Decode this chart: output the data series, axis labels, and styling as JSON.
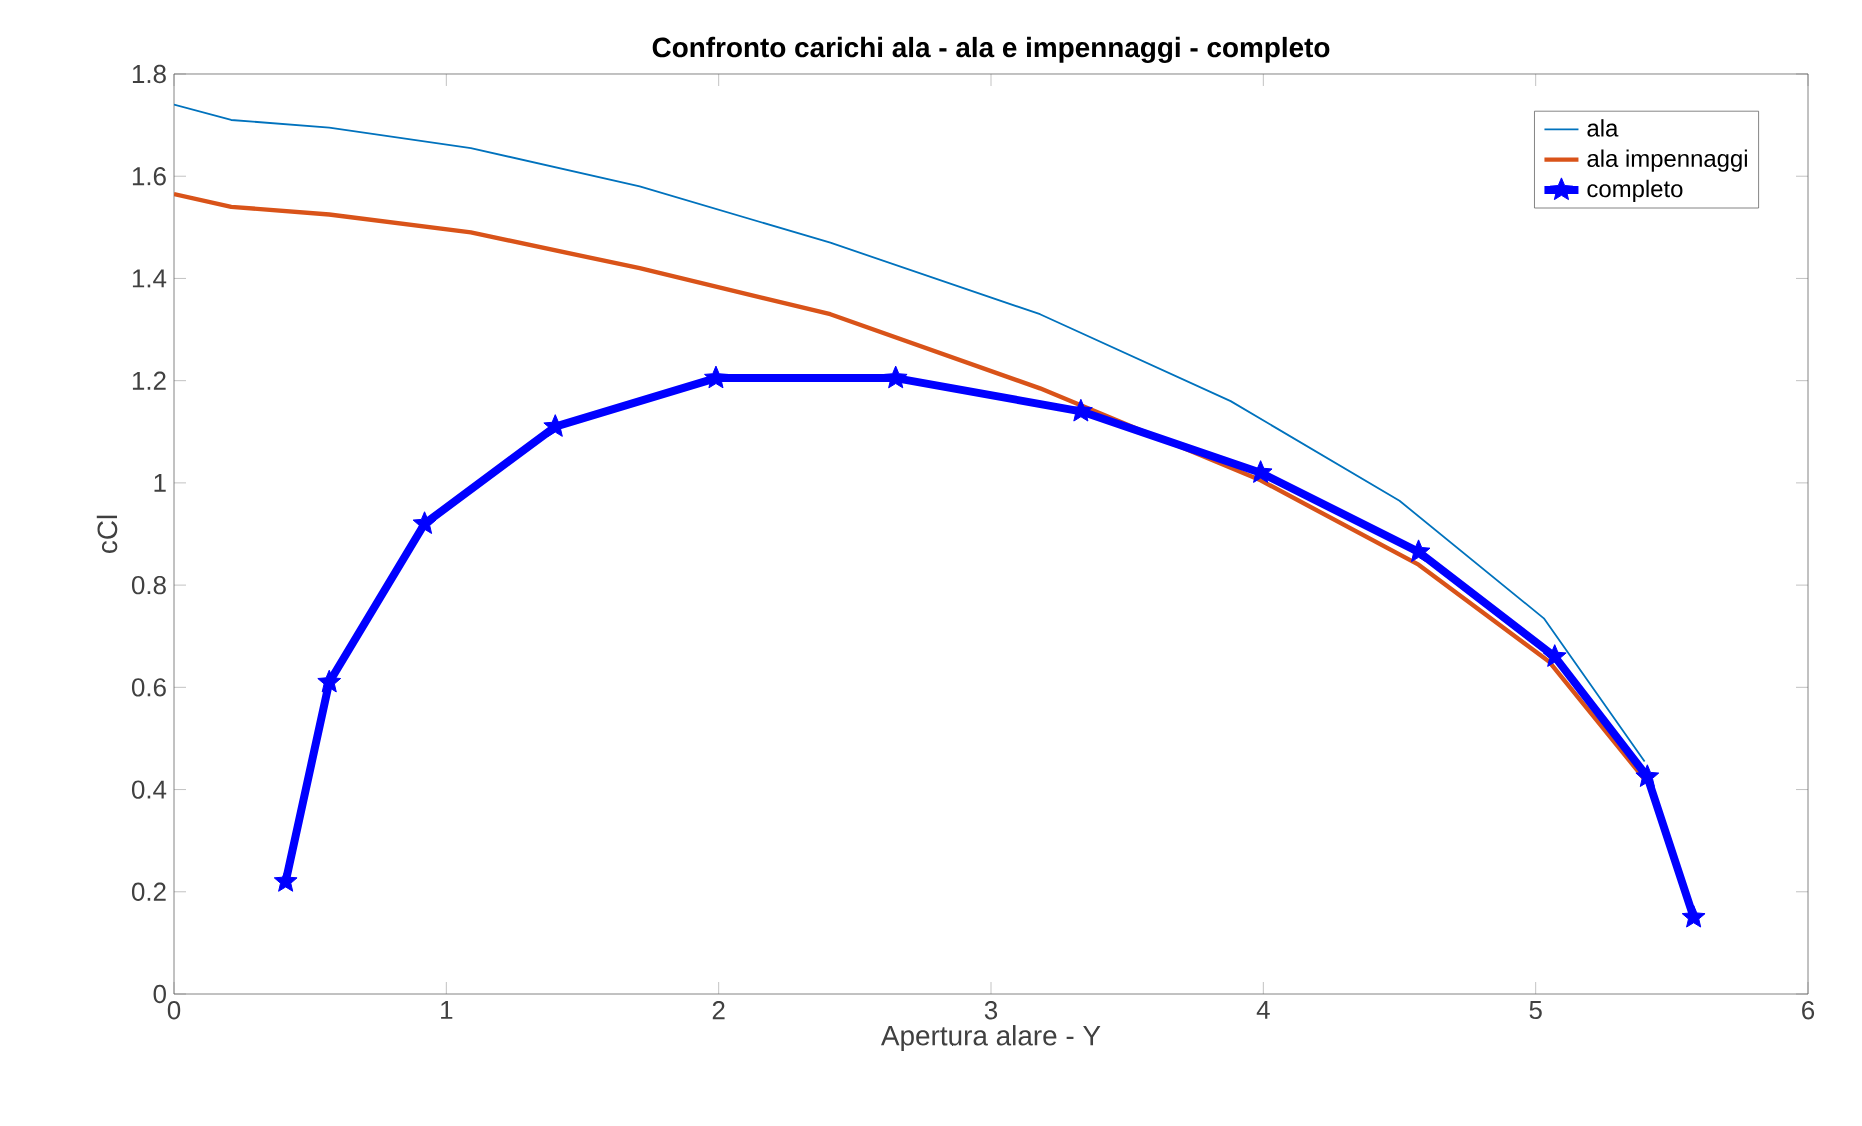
{
  "chart_data": {
    "type": "line",
    "title": "Confronto carichi ala - ala e impennaggi - completo",
    "xlabel": "Apertura alare - Y",
    "ylabel": "cCl",
    "xlim": [
      0,
      6
    ],
    "xticks": [
      0,
      1,
      2,
      3,
      4,
      5,
      6
    ],
    "ylim": [
      0,
      1.8
    ],
    "yticks": [
      0,
      0.2,
      0.4,
      0.6,
      0.8,
      1,
      1.2,
      1.4,
      1.6,
      1.8
    ],
    "grid": false,
    "legend": "top right",
    "series": [
      {
        "name": "ala",
        "color": "#0072bd",
        "marker": "none",
        "x": [
          0,
          0.21,
          0.57,
          1.09,
          1.71,
          2.41,
          3.18,
          3.88,
          4.5,
          5.03,
          5.4
        ],
        "values": [
          1.74,
          1.71,
          1.695,
          1.655,
          1.58,
          1.47,
          1.33,
          1.16,
          0.965,
          0.735,
          0.455
        ]
      },
      {
        "name": "ala impennaggi",
        "color": "#d95319",
        "marker": "none",
        "x": [
          0,
          0.21,
          0.57,
          1.09,
          1.71,
          2.41,
          3.18,
          3.99,
          4.57,
          5.05,
          5.4
        ],
        "values": [
          1.565,
          1.54,
          1.525,
          1.49,
          1.42,
          1.33,
          1.185,
          1.005,
          0.84,
          0.65,
          0.42
        ]
      },
      {
        "name": "completo",
        "color": "#0000ff",
        "marker": "star",
        "x": [
          0.41,
          0.57,
          0.92,
          1.4,
          1.99,
          2.65,
          3.33,
          3.99,
          4.57,
          5.07,
          5.41,
          5.58
        ],
        "values": [
          0.22,
          0.61,
          0.92,
          1.11,
          1.205,
          1.205,
          1.14,
          1.02,
          0.865,
          0.66,
          0.425,
          0.15
        ]
      }
    ]
  }
}
